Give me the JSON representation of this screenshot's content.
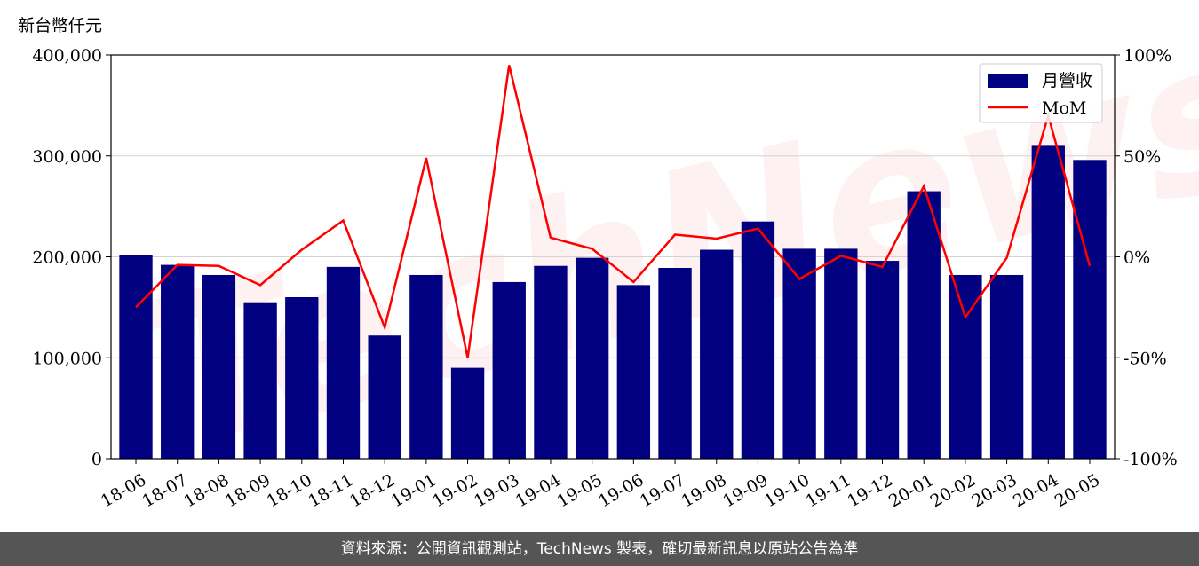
{
  "unit_label": "新台幣仟元",
  "watermark": "TechNews",
  "footer_note": "資料來源：公開資訊觀測站，TechNews 製表，確切最新訊息以原站公告為準",
  "colors": {
    "bar": "#000080",
    "line": "#ff0000",
    "grid": "#d3d3d3",
    "footer_bg": "#555555"
  },
  "chart_data": {
    "type": "bar",
    "categories": [
      "18-06",
      "18-07",
      "18-08",
      "18-09",
      "18-10",
      "18-11",
      "18-12",
      "19-01",
      "19-02",
      "19-03",
      "19-04",
      "19-05",
      "19-06",
      "19-07",
      "19-08",
      "19-09",
      "19-10",
      "19-11",
      "19-12",
      "20-01",
      "20-02",
      "20-03",
      "20-04",
      "20-05"
    ],
    "series": [
      {
        "name": "月營收",
        "type": "bar",
        "axis": "left",
        "values": [
          202000,
          192000,
          182000,
          155000,
          160000,
          190000,
          122000,
          182000,
          90000,
          175000,
          191000,
          199000,
          172000,
          189000,
          207000,
          235000,
          208000,
          208000,
          196000,
          265000,
          182000,
          182000,
          310000,
          296000
        ]
      },
      {
        "name": "MoM",
        "type": "line",
        "axis": "right",
        "values": [
          -25,
          -4,
          -4.5,
          -14,
          3.5,
          18,
          -35,
          49,
          -50,
          95,
          9.5,
          4,
          -12.5,
          11,
          9,
          14,
          -11,
          0.5,
          -5,
          35,
          -30,
          -0.5,
          70,
          -4.5
        ]
      }
    ],
    "ylim": [
      0,
      400000
    ],
    "y_ticks": [
      "0",
      "100,000",
      "200,000",
      "300,000",
      "400,000"
    ],
    "y2lim": [
      -100,
      100
    ],
    "y2_ticks": [
      "-100%",
      "-50%",
      "0%",
      "50%",
      "100%"
    ],
    "grid": true,
    "legend": "top-right"
  }
}
